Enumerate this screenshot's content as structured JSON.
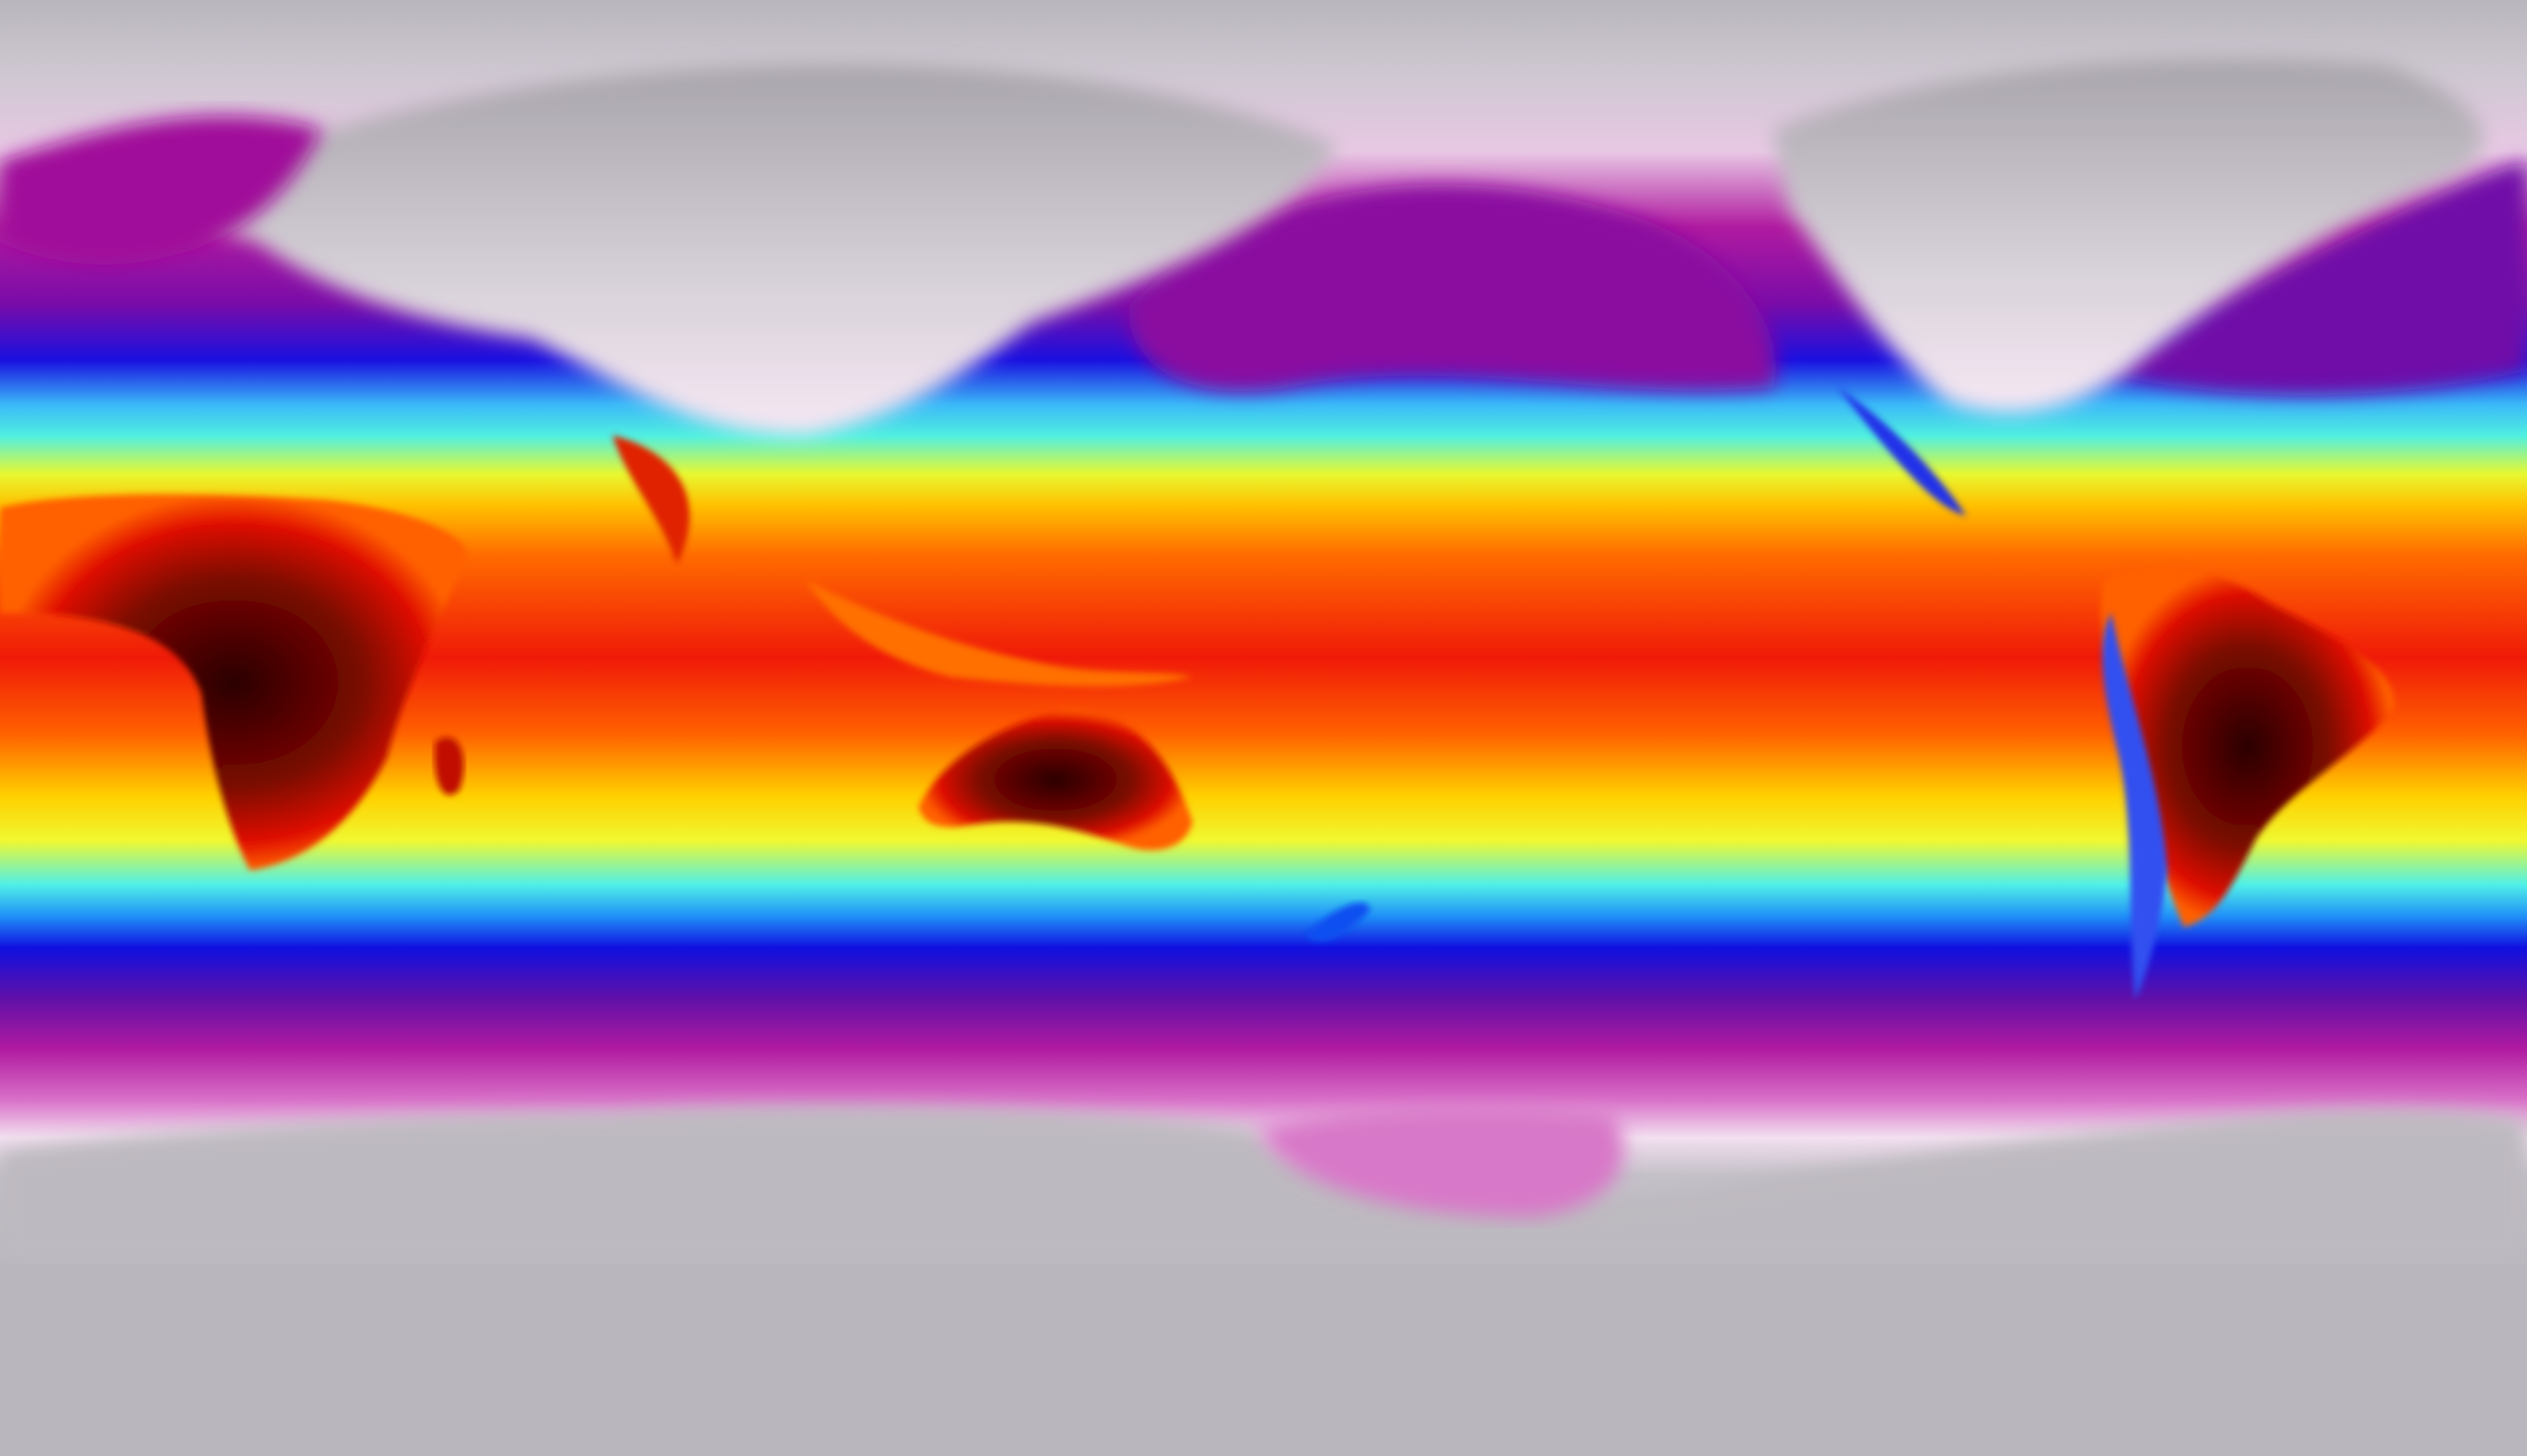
{
  "map": {
    "projection": "equirectangular",
    "palette": {
      "polar_gray": "#b9b6bd",
      "snow_white": "#f5e6f2",
      "pink": "#d86ac4",
      "magenta": "#a0109a",
      "purple": "#5a0aa8",
      "blue": "#1010e8",
      "cyan": "#40e8f0",
      "yellow": "#f8f820",
      "orange": "#ff8a00",
      "red": "#f01808",
      "dark_red": "#3a0000"
    }
  }
}
